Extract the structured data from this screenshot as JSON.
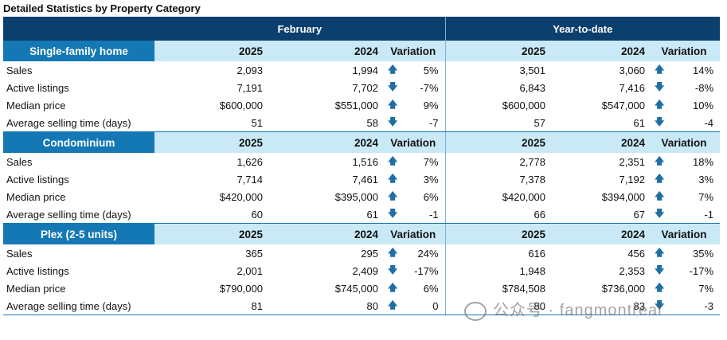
{
  "title": "Detailed Statistics by Property Category",
  "header": {
    "february": "February",
    "ytd": "Year-to-date"
  },
  "columns": {
    "y2025": "2025",
    "y2024": "2024",
    "variation": "Variation"
  },
  "categories": [
    {
      "name": "Single-family home",
      "rows": [
        {
          "label": "Sales",
          "feb2025": "2,093",
          "feb2024": "1,994",
          "febDir": "up",
          "febVar": "5%",
          "ytd2025": "3,501",
          "ytd2024": "3,060",
          "ytdDir": "up",
          "ytdVar": "14%"
        },
        {
          "label": "Active listings",
          "feb2025": "7,191",
          "feb2024": "7,702",
          "febDir": "down",
          "febVar": "-7%",
          "ytd2025": "6,843",
          "ytd2024": "7,416",
          "ytdDir": "down",
          "ytdVar": "-8%"
        },
        {
          "label": "Median price",
          "feb2025": "$600,000",
          "feb2024": "$551,000",
          "febDir": "up",
          "febVar": "9%",
          "ytd2025": "$600,000",
          "ytd2024": "$547,000",
          "ytdDir": "up",
          "ytdVar": "10%"
        },
        {
          "label": "Average selling time (days)",
          "feb2025": "51",
          "feb2024": "58",
          "febDir": "down",
          "febVar": "-7",
          "ytd2025": "57",
          "ytd2024": "61",
          "ytdDir": "down",
          "ytdVar": "-4"
        }
      ]
    },
    {
      "name": "Condominium",
      "rows": [
        {
          "label": "Sales",
          "feb2025": "1,626",
          "feb2024": "1,516",
          "febDir": "up",
          "febVar": "7%",
          "ytd2025": "2,778",
          "ytd2024": "2,351",
          "ytdDir": "up",
          "ytdVar": "18%"
        },
        {
          "label": "Active listings",
          "feb2025": "7,714",
          "feb2024": "7,461",
          "febDir": "up",
          "febVar": "3%",
          "ytd2025": "7,378",
          "ytd2024": "7,192",
          "ytdDir": "up",
          "ytdVar": "3%"
        },
        {
          "label": "Median price",
          "feb2025": "$420,000",
          "feb2024": "$395,000",
          "febDir": "up",
          "febVar": "6%",
          "ytd2025": "$420,000",
          "ytd2024": "$394,000",
          "ytdDir": "up",
          "ytdVar": "7%"
        },
        {
          "label": "Average selling time (days)",
          "feb2025": "60",
          "feb2024": "61",
          "febDir": "down",
          "febVar": "-1",
          "ytd2025": "66",
          "ytd2024": "67",
          "ytdDir": "down",
          "ytdVar": "-1"
        }
      ]
    },
    {
      "name": "Plex (2-5 units)",
      "rows": [
        {
          "label": "Sales",
          "feb2025": "365",
          "feb2024": "295",
          "febDir": "up",
          "febVar": "24%",
          "ytd2025": "616",
          "ytd2024": "456",
          "ytdDir": "up",
          "ytdVar": "35%"
        },
        {
          "label": "Active listings",
          "feb2025": "2,001",
          "feb2024": "2,409",
          "febDir": "down",
          "febVar": "-17%",
          "ytd2025": "1,948",
          "ytd2024": "2,353",
          "ytdDir": "down",
          "ytdVar": "-17%"
        },
        {
          "label": "Median price",
          "feb2025": "$790,000",
          "feb2024": "$745,000",
          "febDir": "up",
          "febVar": "6%",
          "ytd2025": "$784,508",
          "ytd2024": "$736,000",
          "ytdDir": "up",
          "ytdVar": "7%"
        },
        {
          "label": "Average selling time (days)",
          "feb2025": "81",
          "feb2024": "80",
          "febDir": "up",
          "febVar": "0",
          "ytd2025": "80",
          "ytd2024": "83",
          "ytdDir": "down",
          "ytdVar": "-3"
        }
      ]
    }
  ],
  "arrows": {
    "up": "🡅",
    "down": "🡇"
  },
  "watermark": "公众号 · fangmontreal"
}
